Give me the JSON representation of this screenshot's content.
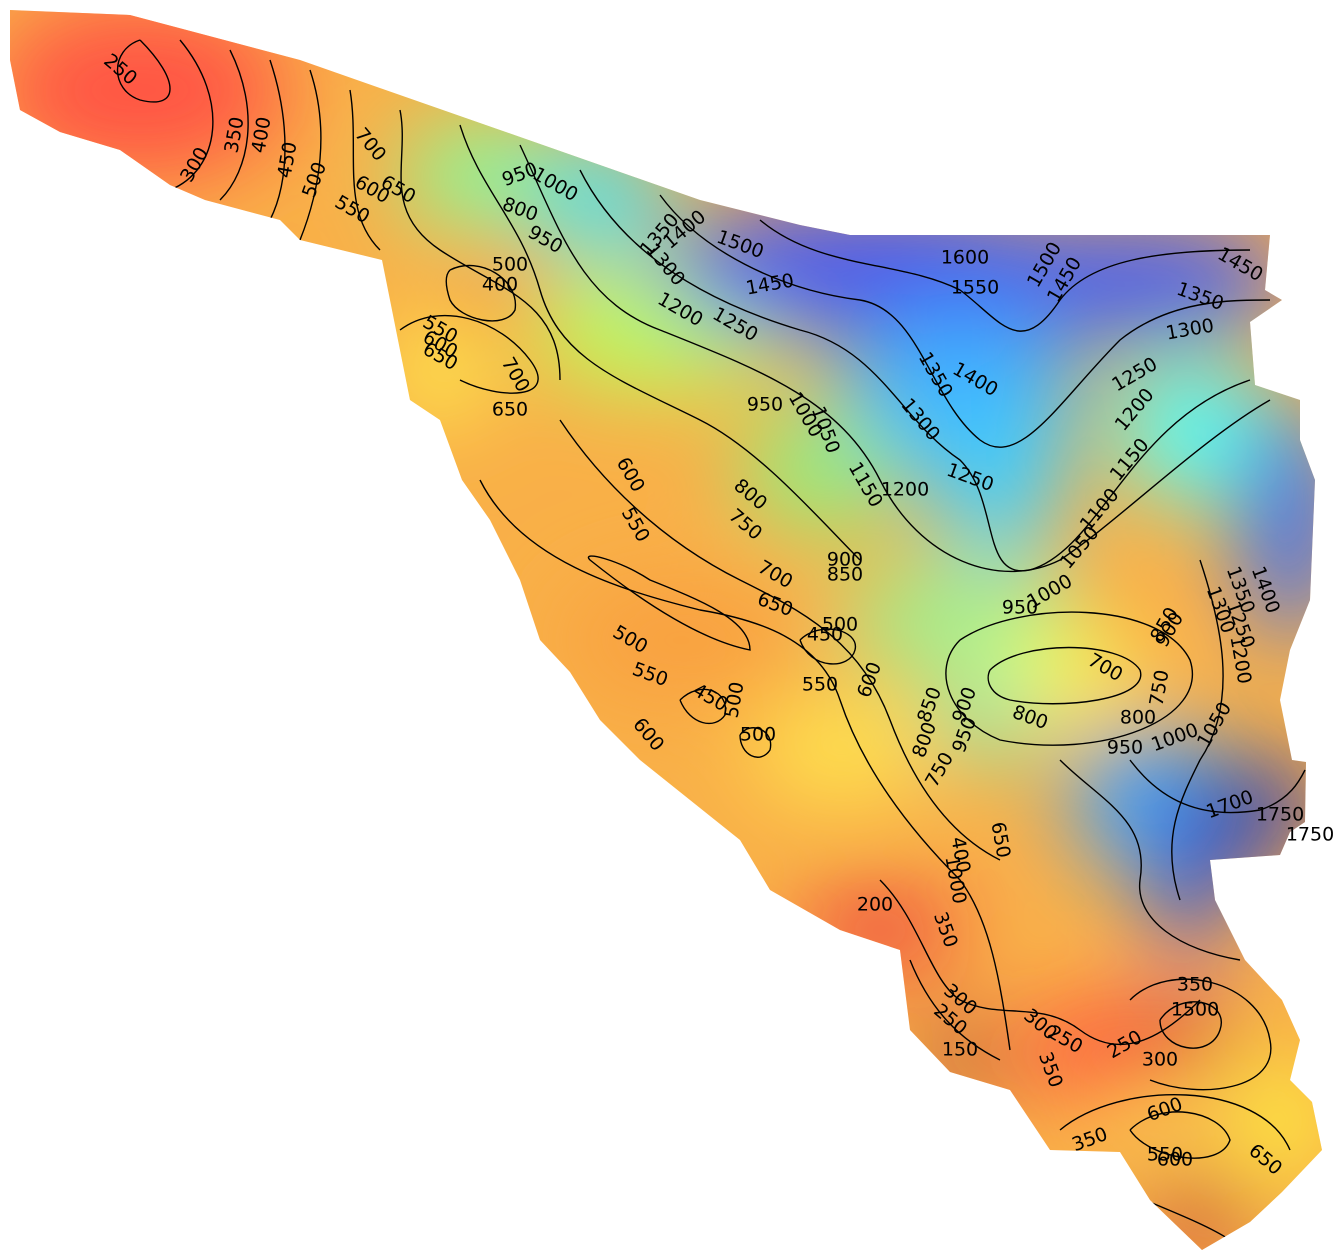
{
  "contour_labels": [
    250,
    300,
    350,
    400,
    450,
    500,
    550,
    600,
    650,
    700,
    950,
    1000,
    800,
    950,
    1350,
    1400,
    1300,
    1500,
    1450,
    1200,
    1250,
    1600,
    1550,
    1500,
    1450,
    1450,
    1350,
    1300,
    1400,
    1350,
    1300,
    1250,
    1200,
    1150,
    1100,
    1250,
    1200,
    1150,
    400,
    500,
    550,
    600,
    650,
    700,
    650,
    950,
    1000,
    1050,
    600,
    550,
    800,
    750,
    700,
    650,
    900,
    850,
    500,
    450,
    500,
    550,
    450,
    500,
    500,
    550,
    600,
    600,
    700,
    800,
    800,
    750,
    850,
    900,
    950,
    1000,
    1050,
    950,
    1000,
    1050,
    900,
    950,
    850,
    800,
    750,
    1400,
    1350,
    1300,
    1250,
    1200,
    1700,
    1750,
    1750,
    200,
    350,
    300,
    250,
    150,
    300,
    250,
    350,
    250,
    300,
    350,
    1500,
    650,
    600,
    550,
    600,
    350,
    650,
    400,
    1000
  ]
}
